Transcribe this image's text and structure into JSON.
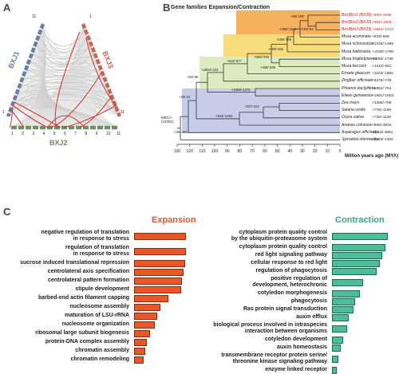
{
  "panels": {
    "a": "A",
    "b": "B",
    "c": "C"
  },
  "panel_a": {
    "labels": {
      "left": "BXJ1",
      "right": "BXJ3",
      "bottom": "BXJ2"
    },
    "ticks_left": [
      "1",
      "11"
    ],
    "ticks_right": [
      "1",
      "11"
    ],
    "ticks_bottom": [
      "1",
      "2",
      "3",
      "4",
      "5",
      "6",
      "7",
      "8",
      "9",
      "10",
      "11"
    ],
    "colors": {
      "bxj1": "#6a7fa6",
      "bxj3": "#c46a52",
      "bxj2": "#6f8f60",
      "links": "#d23a3a",
      "background_links": "#d0d0d0"
    }
  },
  "panel_b": {
    "title": "Gene families Expansion/Contraction",
    "axis_label": "Million years ago (MYA)",
    "axis_ticks": [
      "130",
      "120",
      "110",
      "100",
      "90",
      "80",
      "70",
      "60",
      "50",
      "40",
      "30",
      "20",
      "10",
      "0"
    ],
    "root_label": "MRCA (12001)",
    "species": [
      {
        "name": "Bxx|Bxx1 (BXJ1)",
        "counts": "+990/-1065",
        "highlight": true
      },
      {
        "name": "Bxx|Bxx2 (BXJ2)",
        "counts": "+902/-1903",
        "highlight": true
      },
      {
        "name": "Bxx|Bxx3 (BXJ3)",
        "counts": "+1551/-1012",
        "highlight": true
      },
      {
        "name": "Musa acuminata",
        "counts": "+633/-556",
        "highlight": false
      },
      {
        "name": "Musa schizocarpa",
        "counts": "+1225/-1465",
        "highlight": false
      },
      {
        "name": "Musa balbisiana",
        "counts": "+1030/-2796",
        "highlight": false
      },
      {
        "name": "Musa troglodytarum",
        "counts": "+1196/-1739",
        "highlight": false
      },
      {
        "name": "Musa beccarii",
        "counts": "+1213/-651",
        "highlight": false
      },
      {
        "name": "Ensete glaucum",
        "counts": "+1102/-1983",
        "highlight": false
      },
      {
        "name": "Zingiber officinale",
        "counts": "+8276/-719",
        "highlight": false
      },
      {
        "name": "Phoenix dactylifera",
        "counts": "+1964/-764",
        "highlight": false
      },
      {
        "name": "Elaeis guineensis",
        "counts": "+1691/-1603",
        "highlight": false
      },
      {
        "name": "Zea mays",
        "counts": "+3365/-786",
        "highlight": false
      },
      {
        "name": "Setaria viridis",
        "counts": "+776/-1169",
        "highlight": false
      },
      {
        "name": "Oryza sativa",
        "counts": "+716/-1145",
        "highlight": false
      },
      {
        "name": "Ananas comosus",
        "counts": "+806/-3816",
        "highlight": false
      },
      {
        "name": "Asparagus officinalis",
        "counts": "+1116/-4581",
        "highlight": false
      },
      {
        "name": "Spirodela intermedia",
        "counts": "+1183/-4302",
        "highlight": false
      }
    ],
    "node_labels": [
      "+98/-198",
      "+268/-1104",
      "+102/-84",
      "+198/-159",
      "+108/-256",
      "+605/-200",
      "+448/-339",
      "+618/-677",
      "+3553/-233",
      "+84/-55",
      "+20/-31",
      "+1658/-1375",
      "+337/-322",
      "+624/-2492",
      "+30/-468"
    ],
    "colors": {
      "highlight": "#d02020",
      "band1": "#f5b15e",
      "band2": "#f7dc7c",
      "band3": "#dcecc0",
      "band4": "#c7cde8"
    }
  },
  "panel_c": {
    "expansion_title": "Expansion",
    "contraction_title": "Contraction",
    "colors": {
      "expansion": "#e8572a",
      "expansion_title": "#e0572a",
      "contraction": "#4ebd95",
      "contraction_title": "#3aaa7a"
    },
    "expansion": [
      {
        "label": "negative regulation of translation\nin response to stress",
        "value": 1.0
      },
      {
        "label": "regulation of translation\nin response to stress",
        "value": 1.0
      },
      {
        "label": "sucrose induced translational repression",
        "value": 0.98
      },
      {
        "label": "centrolateral axis specification",
        "value": 0.96
      },
      {
        "label": "centrolateral pattern formation",
        "value": 0.93
      },
      {
        "label": "stipule development",
        "value": 0.9
      },
      {
        "label": "barbed-end actin filament capping",
        "value": 0.66
      },
      {
        "label": "nucleosome assembly",
        "value": 0.5
      },
      {
        "label": "maturation of LSU-rRNA",
        "value": 0.45
      },
      {
        "label": "nucleosome organization",
        "value": 0.4
      },
      {
        "label": "ribosomal large subunit biogenesis",
        "value": 0.3
      },
      {
        "label": "protein-DNA complex assembly",
        "value": 0.25
      },
      {
        "label": "chromatin assembly",
        "value": 0.22
      },
      {
        "label": "chromatin remodeling",
        "value": 0.18
      }
    ],
    "contraction": [
      {
        "label": "cytoplasm protein quality control\nby the ubiquitin-proteasome system",
        "value": 1.0
      },
      {
        "label": "cytoplasm protein quality control",
        "value": 0.95
      },
      {
        "label": "red light signaling pathway",
        "value": 0.9
      },
      {
        "label": "cellular response to red light",
        "value": 0.85
      },
      {
        "label": "regulation of phagocytosis",
        "value": 0.8
      },
      {
        "label": "positive regulation of\ndevelopment, heterochronic",
        "value": 0.55
      },
      {
        "label": "cotyledon morphogenesis",
        "value": 0.5
      },
      {
        "label": "phagocytosis",
        "value": 0.42
      },
      {
        "label": "Ras protein signal transduction",
        "value": 0.38
      },
      {
        "label": "auxin efflux",
        "value": 0.3
      },
      {
        "label": "biological process involved in intraspecies\ninteraction between organisms",
        "value": 0.27
      },
      {
        "label": "cotyledon development",
        "value": 0.2
      },
      {
        "label": "auxin homeostasis",
        "value": 0.16
      },
      {
        "label": "transmembrane receptor protein serine/\nthreonine kinase signaling pathway",
        "value": 0.12
      },
      {
        "label": "enzyme linked receptor",
        "value": 0.08
      }
    ]
  }
}
